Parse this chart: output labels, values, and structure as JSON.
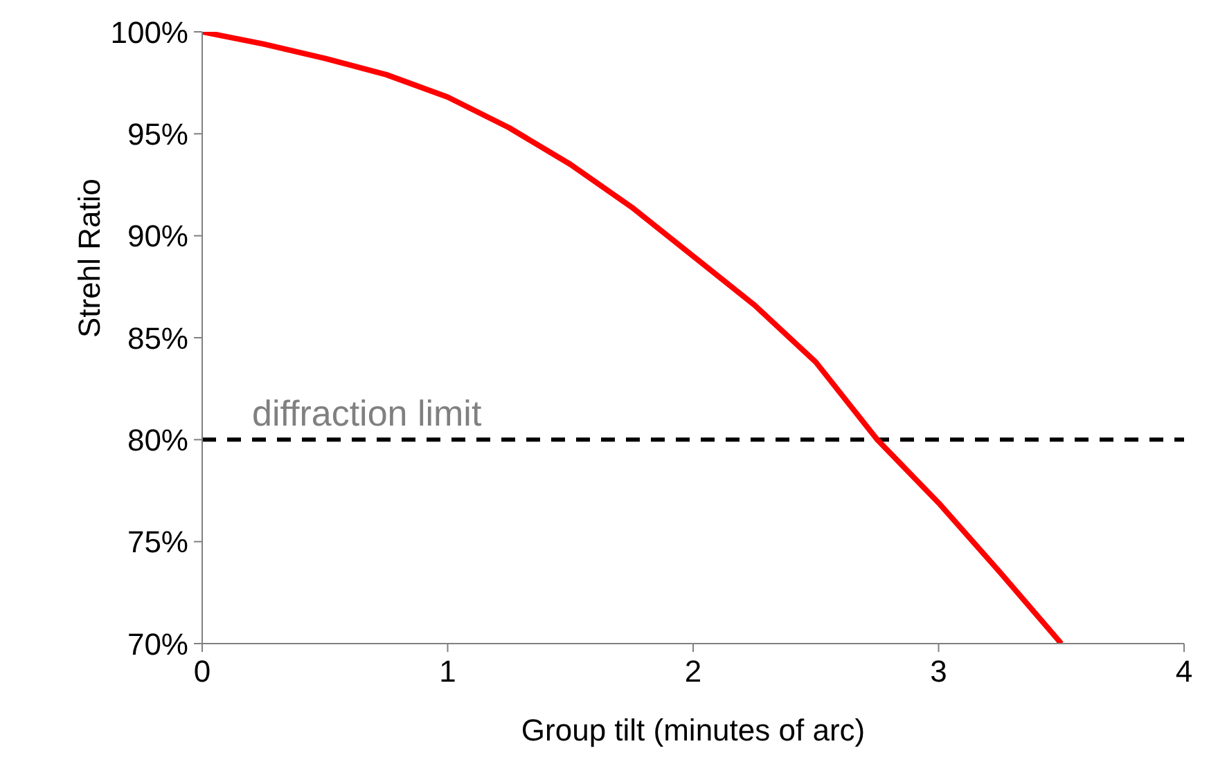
{
  "chart_data": {
    "type": "line",
    "xlabel": "Group tilt (minutes of arc)",
    "ylabel": "Strehl Ratio",
    "x": [
      0,
      0.25,
      0.5,
      0.75,
      1,
      1.25,
      1.5,
      1.75,
      2,
      2.25,
      2.5,
      2.75,
      3,
      3.25,
      3.5
    ],
    "series": [
      {
        "color": "#ff0000",
        "values": [
          100,
          99.4,
          98.7,
          97.9,
          96.8,
          95.3,
          93.5,
          91.4,
          89.0,
          86.6,
          83.8,
          80.0,
          76.9,
          73.5,
          70
        ]
      }
    ],
    "xlim": [
      0,
      4
    ],
    "xticks": [
      0,
      1,
      2,
      3,
      4
    ],
    "ylim": [
      70,
      100
    ],
    "yticks": [
      {
        "value": 70,
        "label": "70%"
      },
      {
        "value": 75,
        "label": "75%"
      },
      {
        "value": 80,
        "label": "80%"
      },
      {
        "value": 85,
        "label": "85%"
      },
      {
        "value": 90,
        "label": "90%"
      },
      {
        "value": 95,
        "label": "95%"
      },
      {
        "value": 100,
        "label": "100%"
      }
    ],
    "ref_lines": [
      {
        "axis": "y",
        "value": 80,
        "label": "diffraction limit",
        "color": "#000000",
        "line_style": "dashed"
      }
    ],
    "grid": false,
    "legend": false,
    "marker": "none",
    "line_style": "solid"
  }
}
